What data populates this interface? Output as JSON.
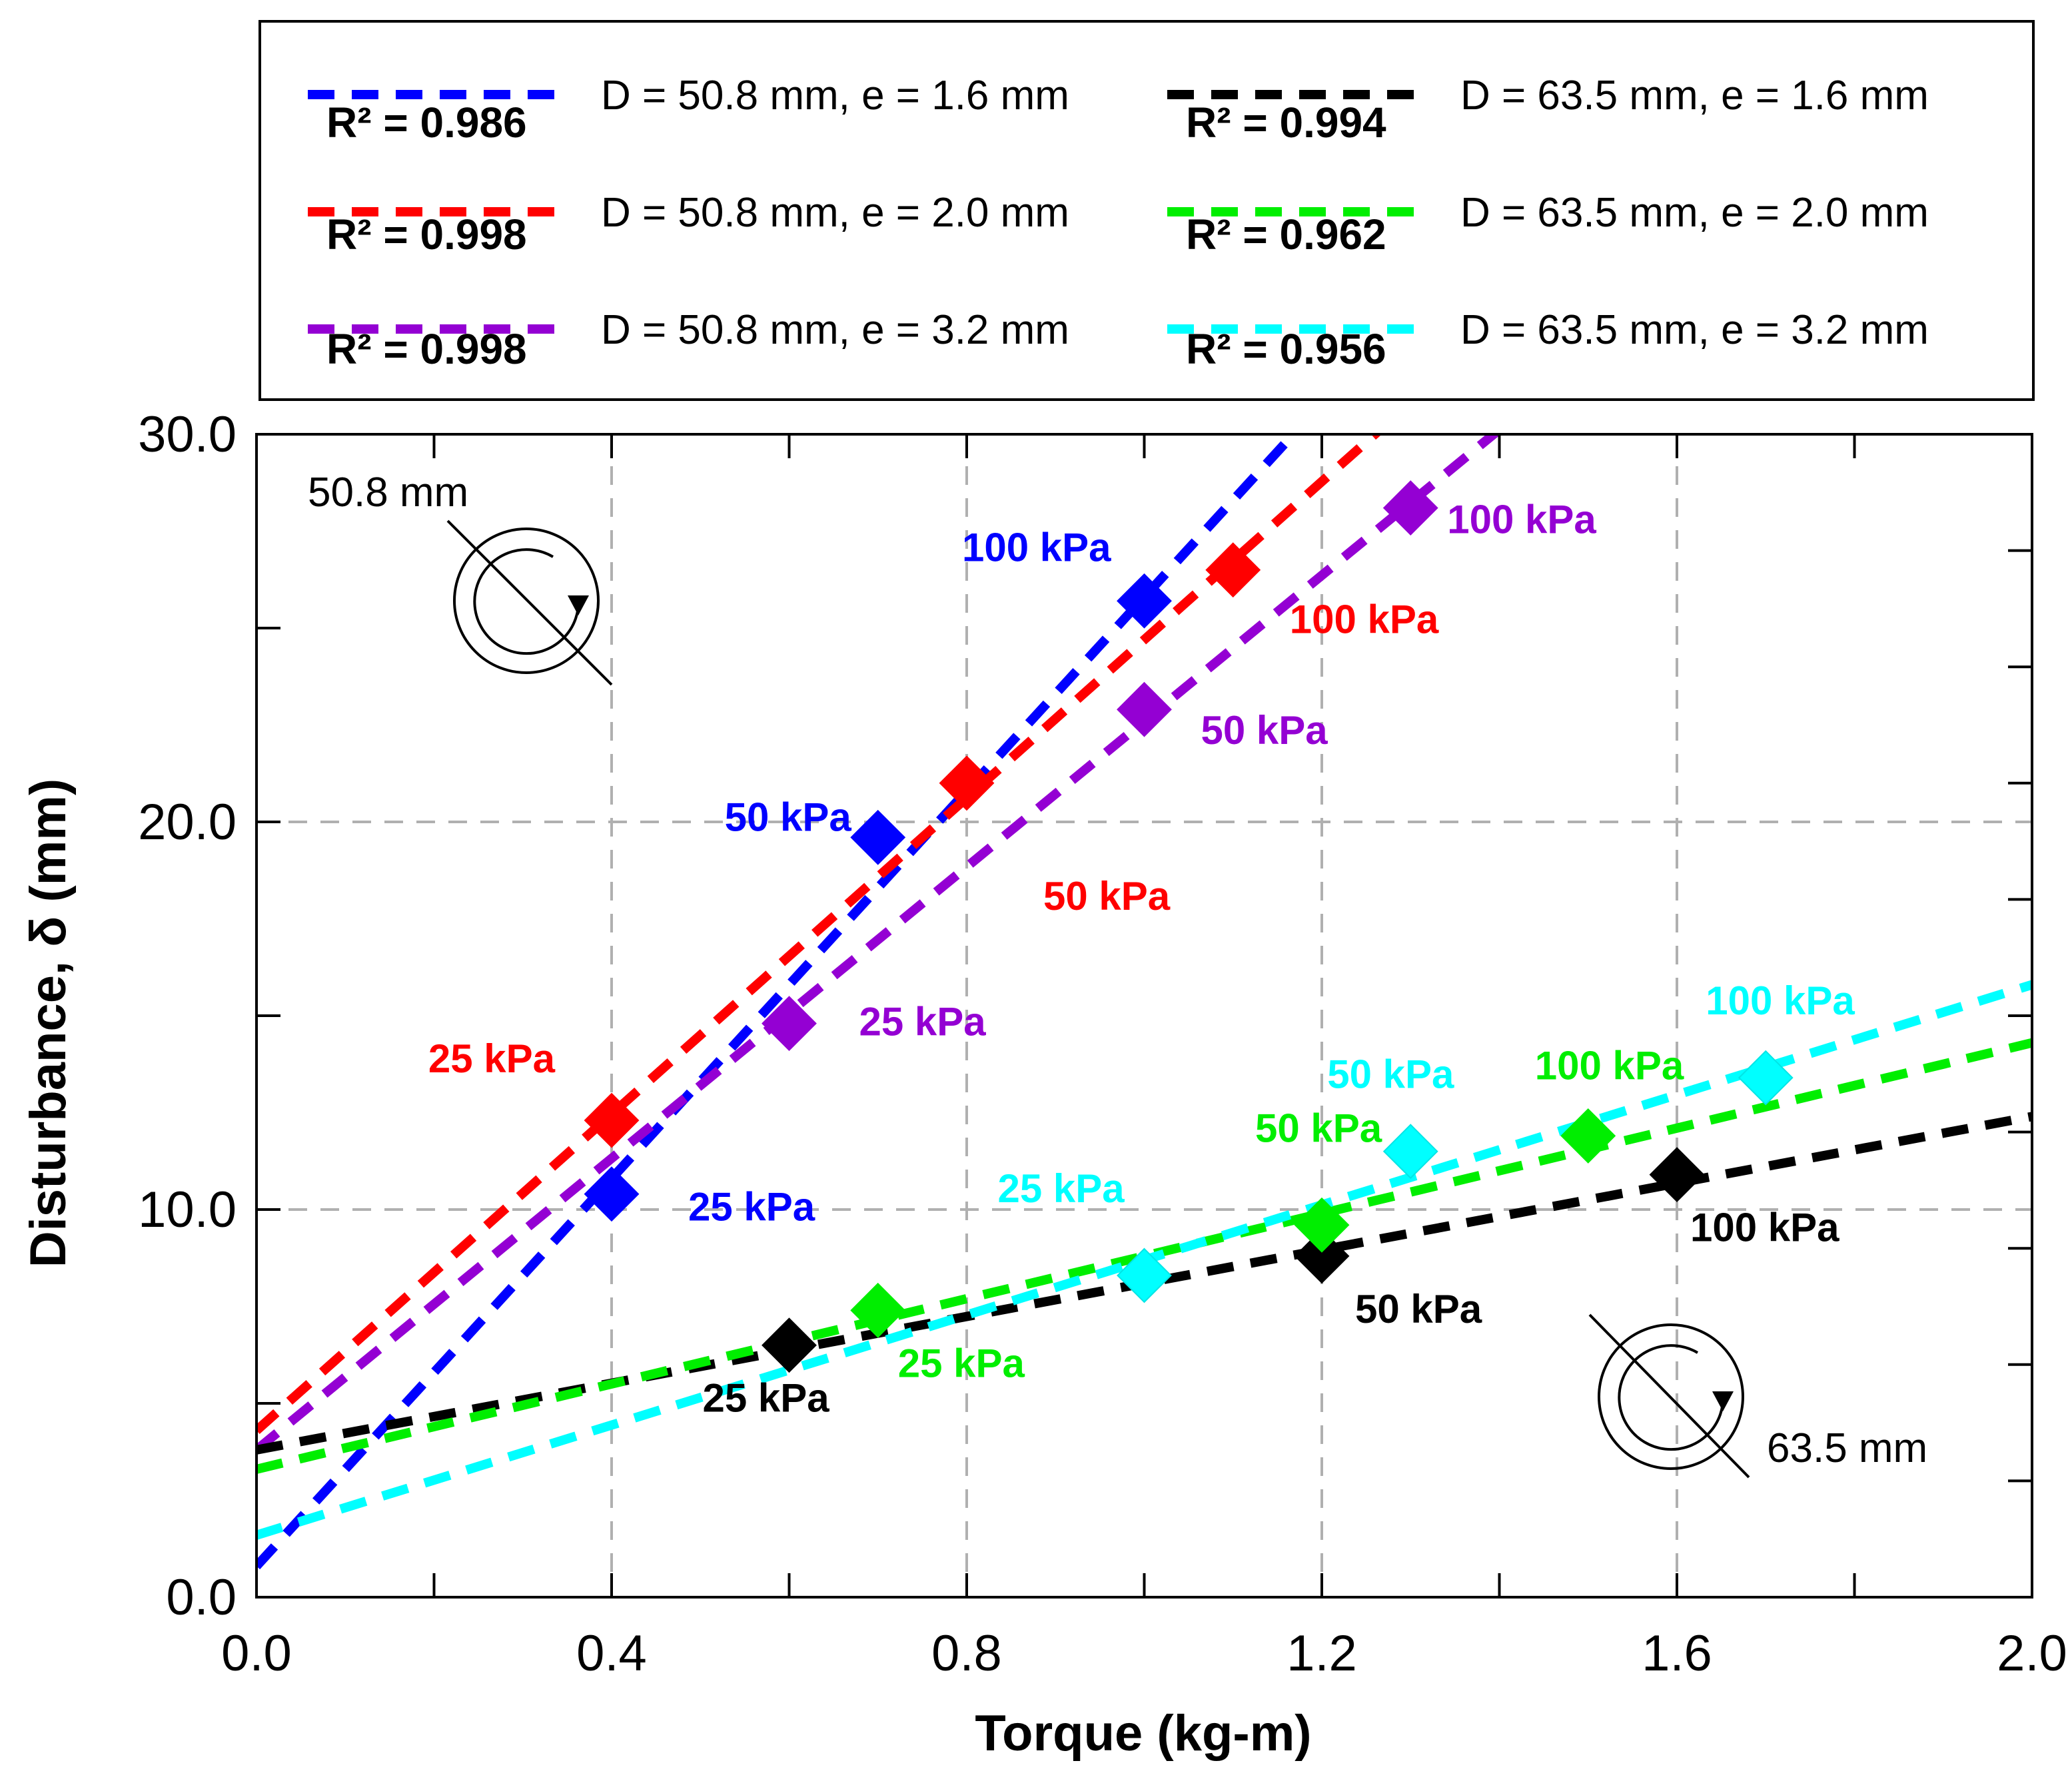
{
  "chart_data": {
    "type": "scatter",
    "xlabel": "Torque (kg-m)",
    "ylabel": "Disturbance, δ (mm)",
    "xlim": [
      0.0,
      2.0
    ],
    "ylim": [
      0.0,
      30.0
    ],
    "x_ticks": [
      "0.0",
      "0.4",
      "0.8",
      "1.2",
      "1.6",
      "2.0"
    ],
    "y_ticks": [
      "0.0",
      "10.0",
      "20.0",
      "30.0"
    ],
    "grid": "dashed",
    "legend_position": "top, above plot",
    "series": [
      {
        "name": "D = 50.8 mm, e = 1.6 mm",
        "r2": "R² = 0.986",
        "color": "#0000ff",
        "fit": {
          "slope": 25.0,
          "intercept": 0.8
        },
        "points": [
          {
            "x": 0.4,
            "y": 10.4,
            "label": "25 kPa"
          },
          {
            "x": 0.7,
            "y": 19.6,
            "label": "50 kPa"
          },
          {
            "x": 1.0,
            "y": 25.7,
            "label": "100 kPa"
          }
        ]
      },
      {
        "name": "D = 50.8 mm, e = 2.0 mm",
        "r2": "R² = 0.998",
        "color": "#ff0000",
        "fit": {
          "slope": 20.4,
          "intercept": 4.3
        },
        "points": [
          {
            "x": 0.4,
            "y": 12.3,
            "label": "25 kPa"
          },
          {
            "x": 0.8,
            "y": 21.0,
            "label": "50 kPa"
          },
          {
            "x": 1.1,
            "y": 26.5,
            "label": "100 kPa"
          }
        ]
      },
      {
        "name": "D = 50.8 mm, e = 3.2 mm",
        "r2": "R² = 0.998",
        "color": "#9400d3",
        "fit": {
          "slope": 18.8,
          "intercept": 3.8
        },
        "points": [
          {
            "x": 0.6,
            "y": 14.8,
            "label": "25 kPa"
          },
          {
            "x": 1.0,
            "y": 22.9,
            "label": "50 kPa"
          },
          {
            "x": 1.3,
            "y": 28.1,
            "label": "100 kPa"
          }
        ]
      },
      {
        "name": "D = 63.5 mm, e = 1.6 mm",
        "r2": "R² = 0.994",
        "color": "#000000",
        "fit": {
          "slope": 4.3,
          "intercept": 3.8
        },
        "points": [
          {
            "x": 0.6,
            "y": 6.5,
            "label": "25 kPa"
          },
          {
            "x": 1.2,
            "y": 8.8,
            "label": "50 kPa"
          },
          {
            "x": 1.6,
            "y": 10.9,
            "label": "100 kPa"
          }
        ]
      },
      {
        "name": "D = 63.5 mm, e = 2.0 mm",
        "r2": "R² = 0.962",
        "color": "#00ee00",
        "fit": {
          "slope": 5.5,
          "intercept": 3.3
        },
        "points": [
          {
            "x": 0.7,
            "y": 7.4,
            "label": "25 kPa"
          },
          {
            "x": 1.2,
            "y": 9.6,
            "label": "50 kPa"
          },
          {
            "x": 1.5,
            "y": 11.9,
            "label": "100 kPa"
          }
        ]
      },
      {
        "name": "D = 63.5 mm, e = 3.2 mm",
        "r2": "R² = 0.956",
        "color": "#00ffff",
        "fit": {
          "slope": 7.1,
          "intercept": 1.6
        },
        "points": [
          {
            "x": 1.0,
            "y": 8.3,
            "label": "25 kPa"
          },
          {
            "x": 1.3,
            "y": 11.5,
            "label": "50 kPa"
          },
          {
            "x": 1.7,
            "y": 13.4,
            "label": "100 kPa"
          }
        ]
      }
    ],
    "annotations": [
      "50.8 mm",
      "63.5 mm"
    ]
  }
}
